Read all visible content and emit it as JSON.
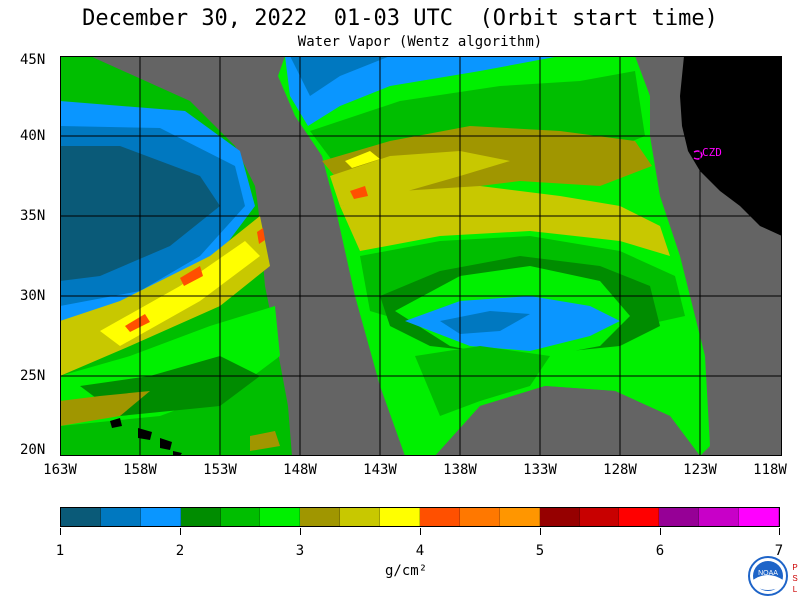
{
  "title": "December 30, 2022  01-03 UTC  (Orbit start time)",
  "subtitle": "Water Vapor (Wentz algorithm)",
  "station_label": "CZD",
  "latitude_labels": [
    "45N",
    "40N",
    "35N",
    "30N",
    "25N",
    "20N"
  ],
  "longitude_labels": [
    "163W",
    "158W",
    "153W",
    "148W",
    "143W",
    "138W",
    "133W",
    "128W",
    "123W",
    "118W"
  ],
  "colorbar": {
    "ticks": [
      "1",
      "2",
      "3",
      "4",
      "5",
      "6",
      "7"
    ],
    "units": "g/cm²",
    "colors": [
      "#0a5a78",
      "#0078c0",
      "#0a96ff",
      "#008c00",
      "#00be00",
      "#00f000",
      "#a09600",
      "#c8c800",
      "#ffff00",
      "#ff5000",
      "#ff7800",
      "#ff9600",
      "#960000",
      "#c80000",
      "#ff0000",
      "#960096",
      "#c800c8",
      "#ff00ff"
    ]
  },
  "colors": {
    "no_data": "#646464",
    "land": "#000000"
  },
  "logo_text": "NOAA",
  "logo_side_text": "PSL"
}
